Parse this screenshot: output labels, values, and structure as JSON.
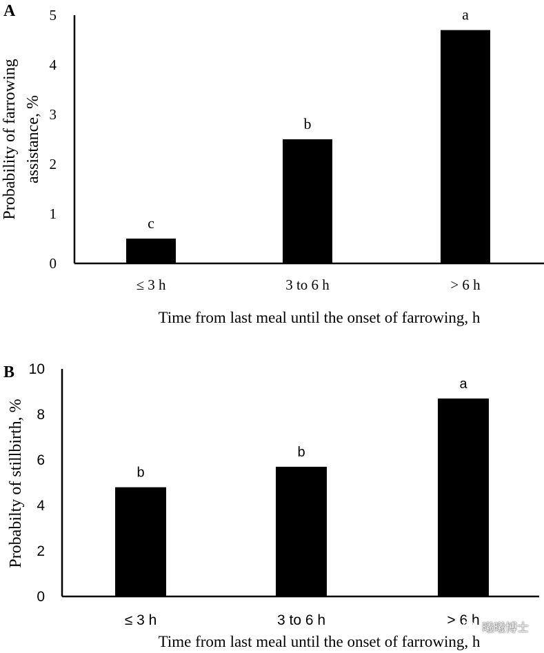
{
  "chart_data": [
    {
      "panel_label": "A",
      "type": "bar",
      "categories": [
        "≤ 3 h",
        "3 to 6 h",
        ">  6 h"
      ],
      "values": [
        0.5,
        2.5,
        4.7
      ],
      "significance_letters": [
        "c",
        "b",
        "a"
      ],
      "xlabel": "Time from last meal until the onset of farrowing, h",
      "ylabel": "Probability of farrowing assistance, %",
      "ylabel_lines": [
        "Probability of farrowing",
        "assistance, %"
      ],
      "ylim": [
        0,
        5
      ],
      "yticks": [
        0,
        1,
        2,
        3,
        4,
        5
      ],
      "grid": false,
      "bar_color": "#000000"
    },
    {
      "panel_label": "B",
      "type": "bar",
      "categories": [
        "≤ 3 h",
        "3 to 6 h",
        "> 6 h"
      ],
      "values": [
        4.8,
        5.7,
        8.7
      ],
      "significance_letters": [
        "b",
        "b",
        "a"
      ],
      "xlabel": "Time from last meal until the onset of farrowing, h",
      "ylabel": "Probabilty of stillbirth, %",
      "ylabel_lines": [
        "Probabilty of stillbirth, %"
      ],
      "ylim": [
        0,
        10
      ],
      "yticks": [
        0,
        2,
        4,
        6,
        8,
        10
      ],
      "grid": false,
      "bar_color": "#000000"
    }
  ],
  "watermark": {
    "text": "曦曦博士",
    "icon": "wechat-bubble-icon"
  }
}
